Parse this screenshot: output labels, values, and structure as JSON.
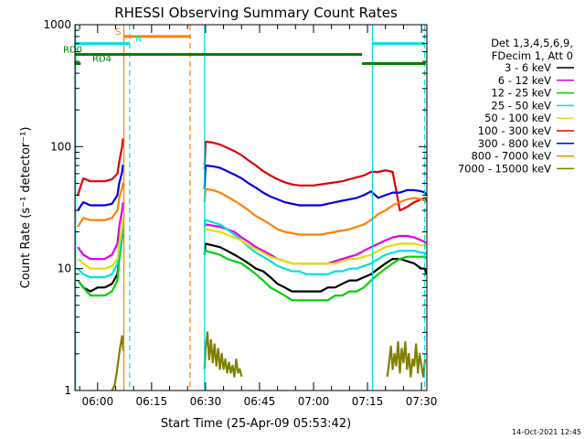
{
  "chart_data": {
    "type": "line",
    "title": "RHESSI Observing Summary Count Rates",
    "xlabel": "Start Time (25-Apr-09 05:53:42)",
    "ylabel": "Count Rate (s⁻¹ detector⁻¹)",
    "yscale": "log",
    "ylim": [
      1,
      1000
    ],
    "xlim": [
      "05:53:42",
      "07:31:30"
    ],
    "ytick_values": [
      1,
      10,
      100,
      1000
    ],
    "ytick_labels": [
      "1",
      "10",
      "100",
      "1000"
    ],
    "xtick_minutes": [
      360,
      375,
      390,
      405,
      420,
      435,
      450
    ],
    "xtick_labels": [
      "06:00",
      "06:15",
      "06:30",
      "06:45",
      "07:00",
      "07:15",
      "07:30"
    ],
    "legend_position": "right",
    "legend_header": [
      "Det 1,3,4,5,6,9,",
      "FDecim 1, Att 0"
    ],
    "series": [
      {
        "name": "3 - 6 keV",
        "color": "#000000",
        "x": [
          354.5,
          356,
          358,
          360,
          362,
          364,
          365.5,
          366,
          366.8,
          367,
          367.4,
          389.7,
          390,
          392,
          394,
          396,
          398,
          400,
          402,
          404,
          406,
          408,
          410,
          412,
          414,
          416,
          418,
          420,
          422,
          424,
          426,
          428,
          430,
          432,
          434,
          436,
          438,
          440,
          442,
          444,
          446,
          448,
          450,
          451,
          451.2
        ],
        "y": [
          8,
          7,
          6.5,
          7,
          7,
          7.5,
          9,
          12,
          18,
          20,
          20,
          13,
          16,
          15.5,
          15,
          14,
          13,
          12,
          11,
          10,
          9.5,
          8.5,
          7.5,
          7,
          6.5,
          6.5,
          6.5,
          6.5,
          6.5,
          7,
          7,
          7.5,
          8,
          8,
          8.5,
          9,
          10,
          11,
          12,
          12,
          11.5,
          11,
          10,
          10,
          9
        ]
      },
      {
        "name": "6 - 12 keV",
        "color": "#e000e0",
        "x": [
          354.5,
          356,
          358,
          360,
          362,
          364,
          365.5,
          366,
          366.8,
          367,
          367.4,
          389.7,
          390,
          392,
          394,
          396,
          398,
          400,
          402,
          404,
          406,
          408,
          410,
          412,
          414,
          416,
          418,
          420,
          422,
          424,
          426,
          428,
          430,
          432,
          434,
          436,
          438,
          440,
          442,
          444,
          446,
          448,
          450,
          451,
          451.2
        ],
        "y": [
          15,
          13,
          12,
          12,
          12,
          13,
          16,
          22,
          30,
          34,
          35,
          22,
          23,
          22.5,
          22,
          21,
          20,
          18,
          16.5,
          15,
          14,
          13,
          12,
          11.5,
          11,
          11,
          11,
          11,
          11,
          11,
          11.5,
          12,
          12.5,
          13,
          14,
          15,
          16,
          17,
          18,
          18.5,
          18.5,
          18,
          17,
          16.5,
          16
        ]
      },
      {
        "name": "12 - 25 keV",
        "color": "#00d000",
        "x": [
          354.5,
          356,
          358,
          360,
          362,
          364,
          365.5,
          366,
          366.8,
          367,
          367.4,
          389.7,
          390,
          392,
          394,
          396,
          398,
          400,
          402,
          404,
          406,
          408,
          410,
          412,
          414,
          416,
          418,
          420,
          422,
          424,
          426,
          428,
          430,
          432,
          434,
          436,
          438,
          440,
          442,
          444,
          446,
          448,
          450,
          451,
          451.2
        ],
        "y": [
          8,
          7,
          6,
          6,
          6,
          6.5,
          8,
          12,
          18,
          22,
          22,
          13,
          14,
          13.5,
          13,
          12,
          11.5,
          11,
          10,
          9,
          8,
          7,
          6.5,
          6,
          5.5,
          5.5,
          5.5,
          5.5,
          5.5,
          5.5,
          6,
          6,
          6.5,
          6.5,
          7,
          8,
          9,
          10,
          11,
          12,
          12.5,
          12.5,
          12.5,
          12.5,
          12
        ]
      },
      {
        "name": "25 - 50 keV",
        "color": "#00e0e0",
        "x": [
          354.5,
          356,
          358,
          360,
          362,
          364,
          365.5,
          366,
          366.8,
          367,
          367.4,
          389.7,
          390,
          392,
          394,
          396,
          398,
          400,
          402,
          404,
          406,
          408,
          410,
          412,
          414,
          416,
          418,
          420,
          422,
          424,
          426,
          428,
          430,
          432,
          434,
          436,
          438,
          440,
          442,
          444,
          446,
          448,
          450,
          451,
          451.2
        ],
        "y": [
          10,
          9,
          8.5,
          8.5,
          8.5,
          9,
          11,
          14,
          20,
          23,
          23,
          22,
          25,
          24,
          23,
          21,
          19,
          17,
          15,
          13.5,
          12.5,
          11.5,
          10.5,
          10,
          9.5,
          9.5,
          9,
          9,
          9,
          9,
          9.5,
          9.5,
          10,
          10,
          10.5,
          11,
          12,
          13,
          13.5,
          14,
          14,
          14,
          13.5,
          13.5,
          13
        ]
      },
      {
        "name": "50 - 100 keV",
        "color": "#e0e000",
        "x": [
          354.5,
          356,
          358,
          360,
          362,
          364,
          365.5,
          366,
          366.8,
          367,
          367.4,
          389.7,
          390,
          392,
          394,
          396,
          398,
          400,
          402,
          404,
          406,
          408,
          410,
          412,
          414,
          416,
          418,
          420,
          422,
          424,
          426,
          428,
          430,
          432,
          434,
          436,
          438,
          440,
          442,
          444,
          446,
          448,
          450,
          451,
          451.2
        ],
        "y": [
          12,
          11,
          10,
          10,
          10,
          10.5,
          12,
          16,
          22,
          26,
          26,
          20,
          21,
          20.5,
          20,
          19,
          18,
          17,
          15.5,
          14.5,
          13.5,
          12.5,
          12,
          11.5,
          11,
          11,
          11,
          11,
          11,
          11,
          11,
          11.5,
          12,
          12,
          12.5,
          13,
          14,
          15,
          15.5,
          16,
          16,
          16,
          15.5,
          15.5,
          15
        ]
      },
      {
        "name": "100 - 300 keV",
        "color": "#e00000",
        "x": [
          354.5,
          356,
          358,
          360,
          362,
          364,
          365.5,
          366,
          366.8,
          367,
          367.4,
          389.7,
          390,
          392,
          394,
          396,
          398,
          400,
          402,
          404,
          406,
          408,
          410,
          412,
          414,
          416,
          418,
          420,
          422,
          424,
          426,
          428,
          430,
          432,
          434,
          436,
          438,
          440,
          442,
          444,
          446,
          448,
          450,
          451,
          451.2
        ],
        "y": [
          40,
          55,
          52,
          52,
          52,
          54,
          60,
          75,
          100,
          115,
          110,
          65,
          110,
          108,
          104,
          98,
          92,
          85,
          77,
          70,
          63,
          58,
          54,
          51,
          49,
          48,
          48,
          48,
          49,
          50,
          51,
          52,
          54,
          56,
          58,
          62,
          62,
          64,
          62,
          30,
          32,
          35,
          37,
          38,
          36
        ]
      },
      {
        "name": "300 - 800 keV",
        "color": "#0000e0",
        "x": [
          354.5,
          356,
          358,
          360,
          362,
          364,
          365.5,
          366,
          366.8,
          367,
          367.4,
          389.7,
          390,
          392,
          394,
          396,
          398,
          400,
          402,
          404,
          406,
          408,
          410,
          412,
          414,
          416,
          418,
          420,
          422,
          424,
          426,
          428,
          430,
          432,
          434,
          436,
          438,
          440,
          442,
          444,
          446,
          448,
          450,
          451,
          451.2
        ],
        "y": [
          30,
          35,
          33,
          33,
          33,
          34,
          40,
          50,
          62,
          70,
          68,
          45,
          70,
          69,
          67,
          63,
          59,
          55,
          50,
          46,
          42,
          39,
          37,
          35,
          34,
          33,
          33,
          33,
          33,
          34,
          35,
          36,
          37,
          38,
          40,
          43,
          38,
          40,
          42,
          42,
          44,
          44,
          43,
          42,
          40
        ]
      },
      {
        "name": "800 - 7000 keV",
        "color": "#ff8000",
        "x": [
          354.5,
          356,
          358,
          360,
          362,
          364,
          365.5,
          366,
          366.8,
          367,
          367.4,
          389.7,
          390,
          392,
          394,
          396,
          398,
          400,
          402,
          404,
          406,
          408,
          410,
          412,
          414,
          416,
          418,
          420,
          422,
          424,
          426,
          428,
          430,
          432,
          434,
          436,
          438,
          440,
          442,
          444,
          446,
          448,
          450,
          451,
          451.2
        ],
        "y": [
          22,
          26,
          25,
          25,
          25,
          26,
          30,
          38,
          46,
          50,
          48,
          35,
          45,
          44,
          42,
          39,
          36,
          33,
          30,
          27,
          25,
          23,
          21,
          20,
          19.5,
          19,
          19,
          19,
          19,
          19.5,
          20,
          20.5,
          21,
          22,
          23,
          25,
          28,
          30,
          33,
          35,
          37,
          38,
          37,
          36,
          35
        ]
      },
      {
        "name": "7000 - 15000 keV",
        "color": "#808000",
        "x": [
          364,
          364.7,
          365.3,
          365.8,
          366.3,
          366.8,
          367.2,
          389.7,
          390,
          390.5,
          391,
          391.5,
          392,
          392.5,
          393,
          393.5,
          394,
          394.5,
          395,
          395.5,
          396,
          396.5,
          397,
          397.5,
          398,
          398.5,
          399,
          399.5,
          400,
          440.5,
          441,
          441.5,
          442,
          442.5,
          443,
          443.5,
          444,
          444.5,
          445,
          445.5,
          446,
          446.5,
          447,
          447.5,
          448,
          448.5,
          449,
          449.5,
          450,
          450.5,
          451
        ],
        "y": [
          1,
          1.1,
          1.4,
          1.8,
          2.3,
          2.8,
          2.1,
          1.5,
          2.2,
          3.0,
          1.8,
          2.6,
          1.7,
          2.4,
          1.6,
          2.2,
          1.5,
          2.0,
          1.5,
          1.8,
          1.4,
          1.7,
          1.4,
          1.6,
          1.3,
          1.8,
          1.4,
          1.5,
          1.3,
          1.3,
          1.7,
          2.3,
          1.5,
          2.0,
          1.6,
          2.5,
          1.4,
          2.2,
          1.7,
          2.5,
          1.5,
          2.0,
          1.3,
          1.8,
          1.6,
          2.4,
          1.4,
          2.0,
          1.6,
          1.3,
          1.8
        ]
      }
    ],
    "intervals": [
      {
        "label": "S",
        "color": "#ff8000",
        "start": 367.3,
        "end": 385.7,
        "y": 800
      },
      {
        "label": "N",
        "color": "#00e0e0",
        "start": 353.7,
        "end": 368.9,
        "y": 700
      },
      {
        "label": "N",
        "color": "#00e0e0",
        "start": 436.4,
        "end": 450.9,
        "y": 700
      },
      {
        "label": "RD0",
        "color": "#008000",
        "start": 353.7,
        "end": 433.5,
        "y": 570
      },
      {
        "label": "RD4",
        "color": "#008000",
        "start": 353.7,
        "end": 355.3,
        "y": 480
      },
      {
        "label": "RD4",
        "color": "#008000",
        "start": 433.5,
        "end": 451.2,
        "y": 480
      }
    ],
    "vertical_markers": [
      {
        "x": 353.9,
        "color": "#00e0e0",
        "style": "solid"
      },
      {
        "x": 367.3,
        "color": "#ff8000",
        "style": "solid"
      },
      {
        "x": 368.9,
        "color": "#00e0e0",
        "style": "dashed"
      },
      {
        "x": 385.7,
        "color": "#ff8000",
        "style": "dashed"
      },
      {
        "x": 389.7,
        "color": "#00e0e0",
        "style": "solid"
      },
      {
        "x": 436.4,
        "color": "#00e0e0",
        "style": "solid"
      },
      {
        "x": 450.9,
        "color": "#00e0e0",
        "style": "dashed"
      }
    ]
  },
  "footer": {
    "date_stamp": "14-Oct-2021 12:45"
  }
}
